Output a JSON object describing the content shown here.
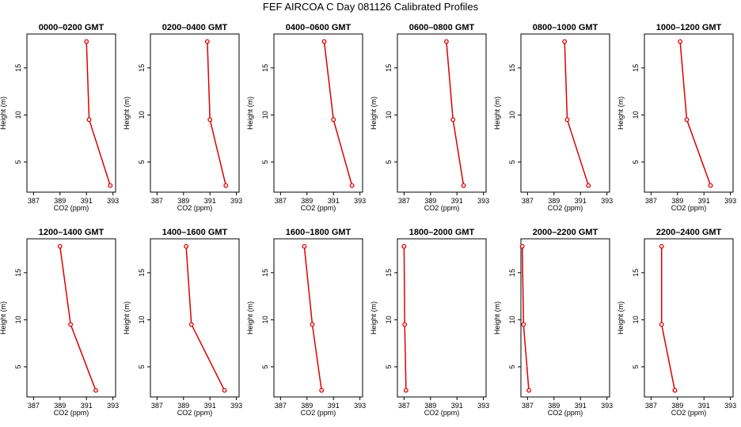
{
  "title": "FEF AIRCOA C  Day 081126  Calibrated Profiles",
  "colors": {
    "series": "#dd0000",
    "axis": "#000000"
  },
  "chart_data": [
    {
      "type": "line",
      "title": "0000–0200 GMT",
      "xlabel": "CO2 (ppm)",
      "ylabel": "Height (m)",
      "xlim": [
        386.5,
        393.2
      ],
      "ylim": [
        1.8,
        18.6
      ],
      "xticks": [
        387,
        389,
        391,
        393
      ],
      "yticks": [
        5,
        10,
        15
      ],
      "x": [
        391.0,
        391.2,
        392.8
      ],
      "y": [
        17.8,
        9.5,
        2.5
      ]
    },
    {
      "type": "line",
      "title": "0200–0400 GMT",
      "xlabel": "CO2 (ppm)",
      "ylabel": "Height (m)",
      "xlim": [
        386.5,
        393.2
      ],
      "ylim": [
        1.8,
        18.6
      ],
      "xticks": [
        387,
        389,
        391,
        393
      ],
      "yticks": [
        5,
        10,
        15
      ],
      "x": [
        390.8,
        391.0,
        392.2
      ],
      "y": [
        17.8,
        9.5,
        2.5
      ]
    },
    {
      "type": "line",
      "title": "0400–0600 GMT",
      "xlabel": "CO2 (ppm)",
      "ylabel": "Height (m)",
      "xlim": [
        386.5,
        393.2
      ],
      "ylim": [
        1.8,
        18.6
      ],
      "xticks": [
        387,
        389,
        391,
        393
      ],
      "yticks": [
        5,
        10,
        15
      ],
      "x": [
        390.3,
        391.0,
        392.4
      ],
      "y": [
        17.8,
        9.5,
        2.5
      ]
    },
    {
      "type": "line",
      "title": "0600–0800 GMT",
      "xlabel": "CO2 (ppm)",
      "ylabel": "Height (m)",
      "xlim": [
        386.5,
        393.2
      ],
      "ylim": [
        1.8,
        18.6
      ],
      "xticks": [
        387,
        389,
        391,
        393
      ],
      "yticks": [
        5,
        10,
        15
      ],
      "x": [
        390.2,
        390.7,
        391.5
      ],
      "y": [
        17.8,
        9.5,
        2.5
      ]
    },
    {
      "type": "line",
      "title": "0800–1000 GMT",
      "xlabel": "CO2 (ppm)",
      "ylabel": "Height (m)",
      "xlim": [
        386.5,
        393.2
      ],
      "ylim": [
        1.8,
        18.6
      ],
      "xticks": [
        387,
        389,
        391,
        393
      ],
      "yticks": [
        5,
        10,
        15
      ],
      "x": [
        389.8,
        390.0,
        391.6
      ],
      "y": [
        17.8,
        9.5,
        2.5
      ]
    },
    {
      "type": "line",
      "title": "1000–1200 GMT",
      "xlabel": "CO2 (ppm)",
      "ylabel": "Height (m)",
      "xlim": [
        386.5,
        393.2
      ],
      "ylim": [
        1.8,
        18.6
      ],
      "xticks": [
        387,
        389,
        391,
        393
      ],
      "yticks": [
        5,
        10,
        15
      ],
      "x": [
        389.2,
        389.7,
        391.5
      ],
      "y": [
        17.8,
        9.5,
        2.5
      ]
    },
    {
      "type": "line",
      "title": "1200–1400 GMT",
      "xlabel": "CO2 (ppm)",
      "ylabel": "Height (m)",
      "xlim": [
        386.5,
        393.2
      ],
      "ylim": [
        1.8,
        18.6
      ],
      "xticks": [
        387,
        389,
        391,
        393
      ],
      "yticks": [
        5,
        10,
        15
      ],
      "x": [
        389.0,
        389.8,
        391.7
      ],
      "y": [
        17.8,
        9.5,
        2.5
      ]
    },
    {
      "type": "line",
      "title": "1400–1600 GMT",
      "xlabel": "CO2 (ppm)",
      "ylabel": "Height (m)",
      "xlim": [
        386.5,
        393.2
      ],
      "ylim": [
        1.8,
        18.6
      ],
      "xticks": [
        387,
        389,
        391,
        393
      ],
      "yticks": [
        5,
        10,
        15
      ],
      "x": [
        389.2,
        389.6,
        392.1
      ],
      "y": [
        17.8,
        9.5,
        2.5
      ]
    },
    {
      "type": "line",
      "title": "1600–1800 GMT",
      "xlabel": "CO2 (ppm)",
      "ylabel": "Height (m)",
      "xlim": [
        386.5,
        393.2
      ],
      "ylim": [
        1.8,
        18.6
      ],
      "xticks": [
        387,
        389,
        391,
        393
      ],
      "yticks": [
        5,
        10,
        15
      ],
      "x": [
        388.8,
        389.4,
        390.1
      ],
      "y": [
        17.8,
        9.5,
        2.5
      ]
    },
    {
      "type": "line",
      "title": "1800–2000 GMT",
      "xlabel": "CO2 (ppm)",
      "ylabel": "Height (m)",
      "xlim": [
        386.5,
        393.2
      ],
      "ylim": [
        1.8,
        18.6
      ],
      "xticks": [
        387,
        389,
        391,
        393
      ],
      "yticks": [
        5,
        10,
        15
      ],
      "x": [
        387.0,
        387.05,
        387.15
      ],
      "y": [
        17.8,
        9.5,
        2.5
      ]
    },
    {
      "type": "line",
      "title": "2000–2200 GMT",
      "xlabel": "CO2 (ppm)",
      "ylabel": "Height (m)",
      "xlim": [
        386.5,
        393.2
      ],
      "ylim": [
        1.8,
        18.6
      ],
      "xticks": [
        387,
        389,
        391,
        393
      ],
      "yticks": [
        5,
        10,
        15
      ],
      "x": [
        386.6,
        386.7,
        387.1
      ],
      "y": [
        17.8,
        9.5,
        2.5
      ]
    },
    {
      "type": "line",
      "title": "2200–2400 GMT",
      "xlabel": "CO2 (ppm)",
      "ylabel": "Height (m)",
      "xlim": [
        386.5,
        393.2
      ],
      "ylim": [
        1.8,
        18.6
      ],
      "xticks": [
        387,
        389,
        391,
        393
      ],
      "yticks": [
        5,
        10,
        15
      ],
      "x": [
        387.8,
        387.8,
        388.8
      ],
      "y": [
        17.8,
        9.5,
        2.5
      ]
    }
  ]
}
